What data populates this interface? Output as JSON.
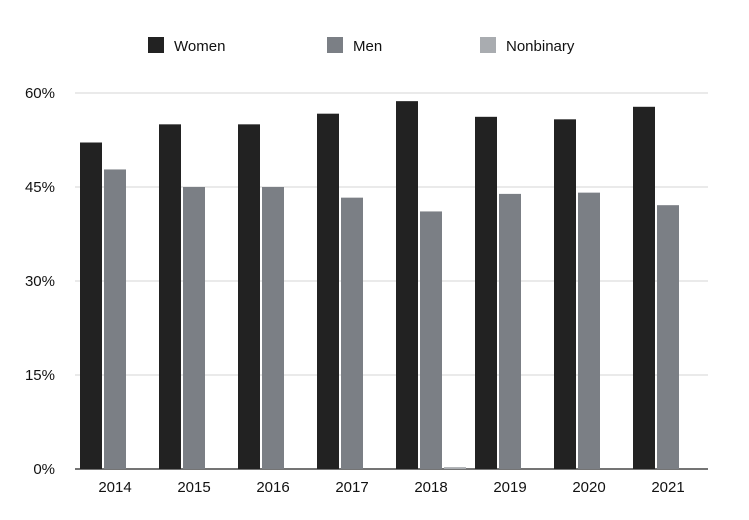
{
  "chart_data": {
    "type": "bar",
    "categories": [
      "2014",
      "2015",
      "2016",
      "2017",
      "2018",
      "2019",
      "2020",
      "2021"
    ],
    "series": [
      {
        "name": "Women",
        "color": "#222222",
        "values": [
          52.1,
          55.0,
          55.0,
          56.7,
          58.7,
          56.2,
          55.8,
          57.8
        ]
      },
      {
        "name": "Men",
        "color": "#7b7f85",
        "values": [
          47.8,
          45.0,
          45.0,
          43.3,
          41.1,
          43.9,
          44.1,
          42.1
        ]
      },
      {
        "name": "Nonbinary",
        "color": "#a9acb0",
        "values": [
          0,
          0,
          0,
          0,
          0.3,
          0,
          0,
          0
        ]
      }
    ],
    "yticks": [
      "0%",
      "15%",
      "30%",
      "45%",
      "60%"
    ],
    "ytick_values": [
      0,
      15,
      30,
      45,
      60
    ],
    "ylim": [
      0,
      60
    ],
    "grid": true,
    "legend_position": "top"
  }
}
